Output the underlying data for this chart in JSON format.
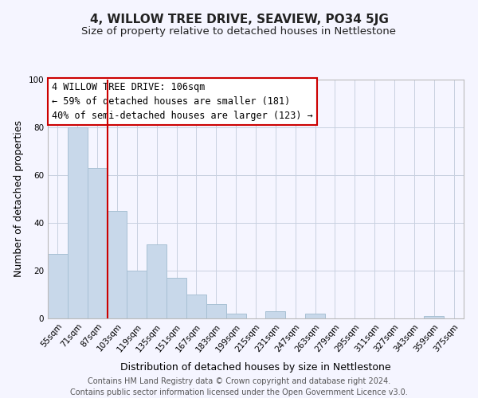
{
  "title": "4, WILLOW TREE DRIVE, SEAVIEW, PO34 5JG",
  "subtitle": "Size of property relative to detached houses in Nettlestone",
  "xlabel": "Distribution of detached houses by size in Nettlestone",
  "ylabel": "Number of detached properties",
  "footer_line1": "Contains HM Land Registry data © Crown copyright and database right 2024.",
  "footer_line2": "Contains public sector information licensed under the Open Government Licence v3.0.",
  "annotation_line1": "4 WILLOW TREE DRIVE: 106sqm",
  "annotation_line2": "← 59% of detached houses are smaller (181)",
  "annotation_line3": "40% of semi-detached houses are larger (123) →",
  "bar_color": "#c8d8ea",
  "bar_edge_color": "#a8c0d4",
  "vline_color": "#cc0000",
  "vline_x_pos": 2.5,
  "bins": [
    "55sqm",
    "71sqm",
    "87sqm",
    "103sqm",
    "119sqm",
    "135sqm",
    "151sqm",
    "167sqm",
    "183sqm",
    "199sqm",
    "215sqm",
    "231sqm",
    "247sqm",
    "263sqm",
    "279sqm",
    "295sqm",
    "311sqm",
    "327sqm",
    "343sqm",
    "359sqm",
    "375sqm"
  ],
  "values": [
    27,
    80,
    63,
    45,
    20,
    31,
    17,
    10,
    6,
    2,
    0,
    3,
    0,
    2,
    0,
    0,
    0,
    0,
    0,
    1,
    0
  ],
  "ylim": [
    0,
    100
  ],
  "background_color": "#f5f5ff",
  "grid_color": "#c8d0e0",
  "title_fontsize": 11,
  "subtitle_fontsize": 9.5,
  "annotation_box_edge": "#cc0000",
  "annotation_fontsize": 8.5,
  "footer_fontsize": 7,
  "axis_label_fontsize": 9,
  "tick_fontsize": 7.5
}
